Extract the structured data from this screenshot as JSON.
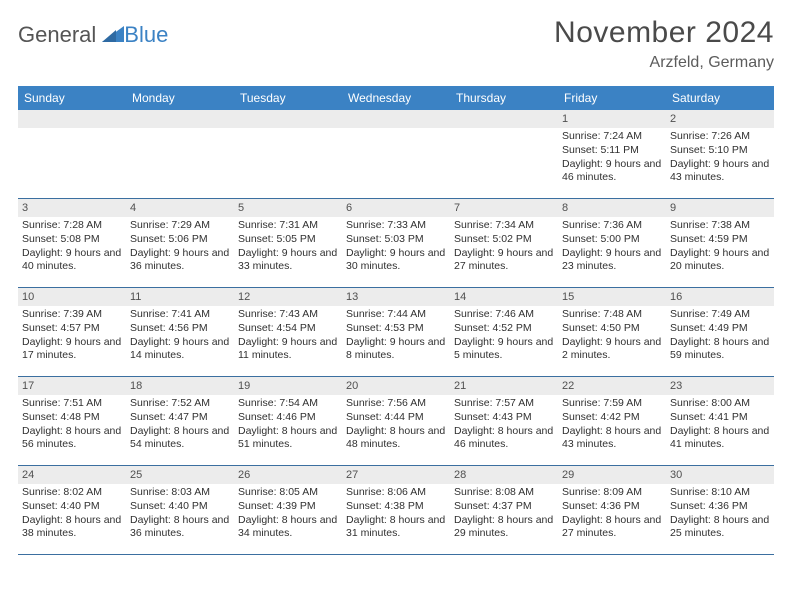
{
  "logo": {
    "part1": "General",
    "part2": "Blue"
  },
  "title": "November 2024",
  "location": "Arzfeld, Germany",
  "colors": {
    "header_bg": "#3b82c4",
    "header_text": "#ffffff",
    "daynum_bg": "#ececec",
    "row_border": "#3b6fa0",
    "body_text": "#303030",
    "title_text": "#4a4a4a"
  },
  "day_names": [
    "Sunday",
    "Monday",
    "Tuesday",
    "Wednesday",
    "Thursday",
    "Friday",
    "Saturday"
  ],
  "weeks": [
    [
      {
        "blank": true
      },
      {
        "blank": true
      },
      {
        "blank": true
      },
      {
        "blank": true
      },
      {
        "blank": true
      },
      {
        "n": "1",
        "sr": "7:24 AM",
        "ss": "5:11 PM",
        "dl": "9 hours and 46 minutes."
      },
      {
        "n": "2",
        "sr": "7:26 AM",
        "ss": "5:10 PM",
        "dl": "9 hours and 43 minutes."
      }
    ],
    [
      {
        "n": "3",
        "sr": "7:28 AM",
        "ss": "5:08 PM",
        "dl": "9 hours and 40 minutes."
      },
      {
        "n": "4",
        "sr": "7:29 AM",
        "ss": "5:06 PM",
        "dl": "9 hours and 36 minutes."
      },
      {
        "n": "5",
        "sr": "7:31 AM",
        "ss": "5:05 PM",
        "dl": "9 hours and 33 minutes."
      },
      {
        "n": "6",
        "sr": "7:33 AM",
        "ss": "5:03 PM",
        "dl": "9 hours and 30 minutes."
      },
      {
        "n": "7",
        "sr": "7:34 AM",
        "ss": "5:02 PM",
        "dl": "9 hours and 27 minutes."
      },
      {
        "n": "8",
        "sr": "7:36 AM",
        "ss": "5:00 PM",
        "dl": "9 hours and 23 minutes."
      },
      {
        "n": "9",
        "sr": "7:38 AM",
        "ss": "4:59 PM",
        "dl": "9 hours and 20 minutes."
      }
    ],
    [
      {
        "n": "10",
        "sr": "7:39 AM",
        "ss": "4:57 PM",
        "dl": "9 hours and 17 minutes."
      },
      {
        "n": "11",
        "sr": "7:41 AM",
        "ss": "4:56 PM",
        "dl": "9 hours and 14 minutes."
      },
      {
        "n": "12",
        "sr": "7:43 AM",
        "ss": "4:54 PM",
        "dl": "9 hours and 11 minutes."
      },
      {
        "n": "13",
        "sr": "7:44 AM",
        "ss": "4:53 PM",
        "dl": "9 hours and 8 minutes."
      },
      {
        "n": "14",
        "sr": "7:46 AM",
        "ss": "4:52 PM",
        "dl": "9 hours and 5 minutes."
      },
      {
        "n": "15",
        "sr": "7:48 AM",
        "ss": "4:50 PM",
        "dl": "9 hours and 2 minutes."
      },
      {
        "n": "16",
        "sr": "7:49 AM",
        "ss": "4:49 PM",
        "dl": "8 hours and 59 minutes."
      }
    ],
    [
      {
        "n": "17",
        "sr": "7:51 AM",
        "ss": "4:48 PM",
        "dl": "8 hours and 56 minutes."
      },
      {
        "n": "18",
        "sr": "7:52 AM",
        "ss": "4:47 PM",
        "dl": "8 hours and 54 minutes."
      },
      {
        "n": "19",
        "sr": "7:54 AM",
        "ss": "4:46 PM",
        "dl": "8 hours and 51 minutes."
      },
      {
        "n": "20",
        "sr": "7:56 AM",
        "ss": "4:44 PM",
        "dl": "8 hours and 48 minutes."
      },
      {
        "n": "21",
        "sr": "7:57 AM",
        "ss": "4:43 PM",
        "dl": "8 hours and 46 minutes."
      },
      {
        "n": "22",
        "sr": "7:59 AM",
        "ss": "4:42 PM",
        "dl": "8 hours and 43 minutes."
      },
      {
        "n": "23",
        "sr": "8:00 AM",
        "ss": "4:41 PM",
        "dl": "8 hours and 41 minutes."
      }
    ],
    [
      {
        "n": "24",
        "sr": "8:02 AM",
        "ss": "4:40 PM",
        "dl": "8 hours and 38 minutes."
      },
      {
        "n": "25",
        "sr": "8:03 AM",
        "ss": "4:40 PM",
        "dl": "8 hours and 36 minutes."
      },
      {
        "n": "26",
        "sr": "8:05 AM",
        "ss": "4:39 PM",
        "dl": "8 hours and 34 minutes."
      },
      {
        "n": "27",
        "sr": "8:06 AM",
        "ss": "4:38 PM",
        "dl": "8 hours and 31 minutes."
      },
      {
        "n": "28",
        "sr": "8:08 AM",
        "ss": "4:37 PM",
        "dl": "8 hours and 29 minutes."
      },
      {
        "n": "29",
        "sr": "8:09 AM",
        "ss": "4:36 PM",
        "dl": "8 hours and 27 minutes."
      },
      {
        "n": "30",
        "sr": "8:10 AM",
        "ss": "4:36 PM",
        "dl": "8 hours and 25 minutes."
      }
    ]
  ],
  "labels": {
    "sunrise": "Sunrise: ",
    "sunset": "Sunset: ",
    "daylight": "Daylight: "
  }
}
